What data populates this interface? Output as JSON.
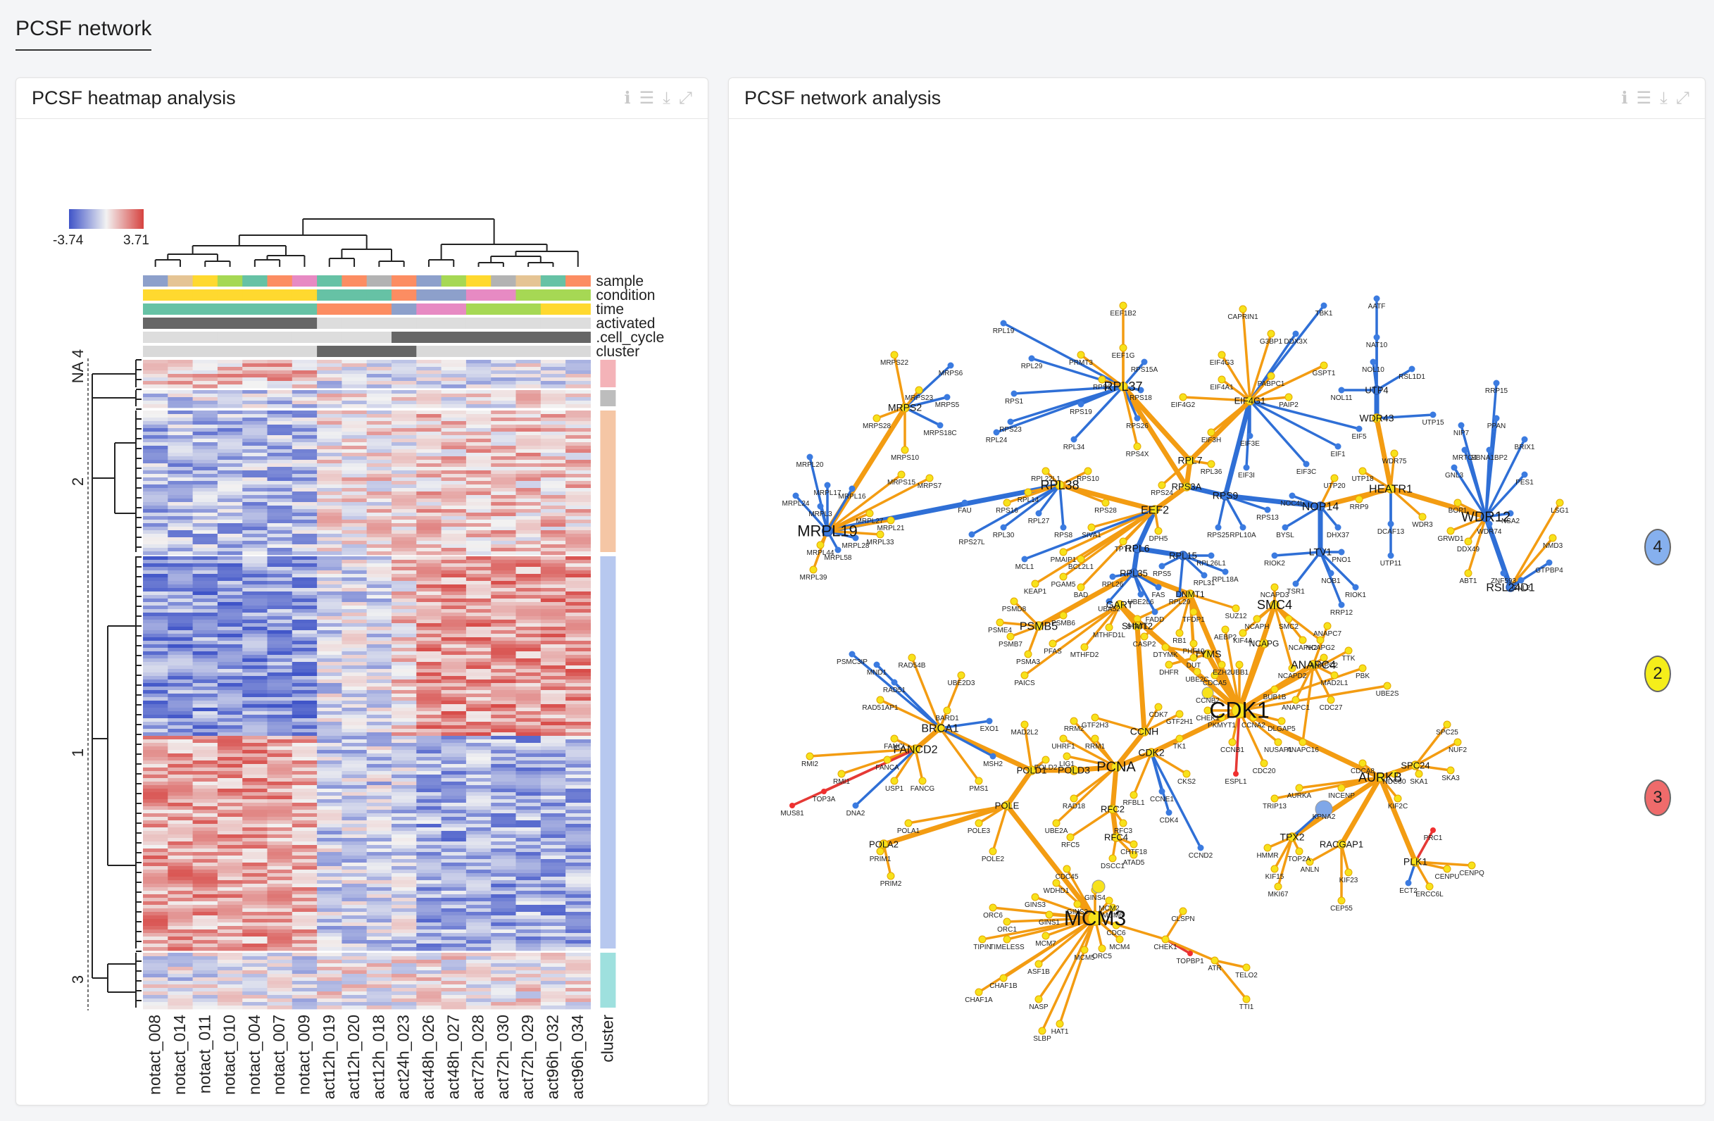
{
  "page": {
    "title": "PCSF network"
  },
  "left_panel": {
    "title": "PCSF heatmap analysis",
    "icons": [
      "info-icon",
      "menu-icon",
      "download-icon",
      "expand-icon"
    ],
    "legend": {
      "min_label": "-3.74",
      "max_label": "3.71"
    },
    "annotation_tracks": [
      "sample",
      "condition",
      "time",
      "activated",
      ".cell_cycle",
      "cluster"
    ],
    "row_groups": [
      "NA",
      "4",
      "2",
      "1",
      "3"
    ],
    "column_labels": [
      "notact_008",
      "notact_014",
      "notact_011",
      "notact_010",
      "notact_004",
      "notact_007",
      "notact_009",
      "act12h_019",
      "act12h_020",
      "act12h_018",
      "act24h_023",
      "act48h_026",
      "act48h_027",
      "act72h_028",
      "act72h_030",
      "act72h_029",
      "act96h_032",
      "act96h_034"
    ],
    "cluster_column_label": "cluster",
    "colors": {
      "low": "#3f54c8",
      "mid": "#f2f2f2",
      "high": "#d6423f"
    }
  },
  "right_panel": {
    "title": "PCSF network analysis",
    "icons": [
      "info-icon",
      "menu-icon",
      "download-icon",
      "expand-icon"
    ],
    "legend_badges": [
      {
        "label": "4",
        "color": "#86b0ee"
      },
      {
        "label": "2",
        "color": "#f5ee1a"
      },
      {
        "label": "3",
        "color": "#ef6b6b"
      }
    ],
    "hub_labels": [
      "RPL37",
      "MRPL19",
      "RPL38",
      "WDR12",
      "CDK1",
      "MCM3",
      "SMC4",
      "HEATR1",
      "NOP14",
      "EEF2",
      "PCNA",
      "AURKB",
      "BRCA1",
      "FANCD2",
      "PSMB5",
      "RSL24D1",
      "ANAPC4",
      "CDK2",
      "CCNH",
      "LTV1",
      "RPS9",
      "MRPS2",
      "EIF4G1",
      "UTP4",
      "WDR43",
      "RPL7",
      "RPS3A",
      "RPL6",
      "RPL35",
      "RPL15",
      "POLD3",
      "RFC2",
      "RFC4",
      "TPX2",
      "RACGAP1",
      "PLK1",
      "SPC24",
      "POLA2",
      "POLD1",
      "POLE",
      "NCAPG",
      "TYMS",
      "DNMT1",
      "GART",
      "SHMT2"
    ],
    "colors": {
      "blue_edge": "#2f6fd6",
      "orange_edge": "#f39c12",
      "yellow_node": "#f7e21b",
      "red_node": "#e53935"
    }
  }
}
